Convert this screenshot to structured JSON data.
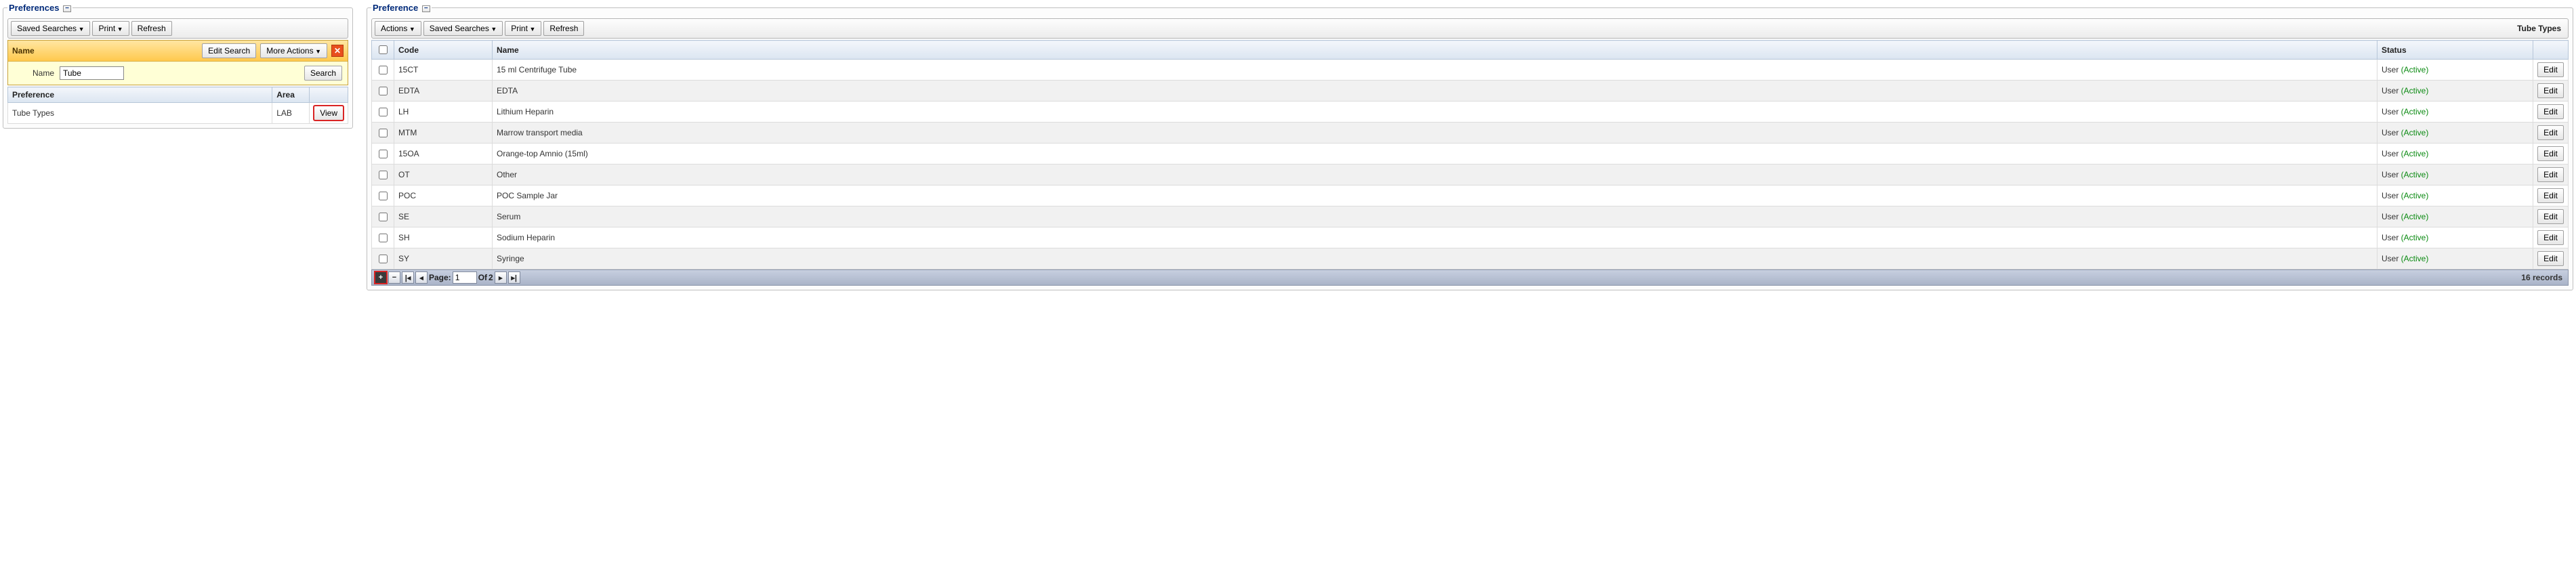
{
  "left": {
    "legend": "Preferences",
    "toolbar": {
      "saved": "Saved Searches",
      "print": "Print",
      "refresh": "Refresh"
    },
    "filter": {
      "headTitle": "Name",
      "editSearch": "Edit Search",
      "moreActions": "More Actions",
      "fieldLabel": "Name",
      "fieldValue": "Tube",
      "searchBtn": "Search"
    },
    "grid": {
      "cols": {
        "pref": "Preference",
        "area": "Area",
        "action": ""
      },
      "rows": [
        {
          "pref": "Tube Types",
          "area": "LAB",
          "action": "View"
        }
      ]
    }
  },
  "right": {
    "legend": "Preference",
    "toolbar": {
      "actions": "Actions",
      "saved": "Saved Searches",
      "print": "Print",
      "refresh": "Refresh",
      "title": "Tube Types"
    },
    "grid": {
      "cols": {
        "code": "Code",
        "name": "Name",
        "status": "Status",
        "action": ""
      },
      "statusPrefix": "User",
      "statusActive": "(Active)",
      "editLabel": "Edit",
      "rows": [
        {
          "code": "15CT",
          "name": "15 ml Centrifuge Tube"
        },
        {
          "code": "EDTA",
          "name": "EDTA"
        },
        {
          "code": "LH",
          "name": "Lithium Heparin"
        },
        {
          "code": "MTM",
          "name": "Marrow transport media"
        },
        {
          "code": "15OA",
          "name": "Orange-top Amnio (15ml)"
        },
        {
          "code": "OT",
          "name": "Other"
        },
        {
          "code": "POC",
          "name": "POC Sample Jar"
        },
        {
          "code": "SE",
          "name": "Serum"
        },
        {
          "code": "SH",
          "name": "Sodium Heparin"
        },
        {
          "code": "SY",
          "name": "Syringe"
        }
      ]
    },
    "pager": {
      "pageLabel": "Page:",
      "page": "1",
      "ofLabel": "Of",
      "total": "2",
      "records": "16 records"
    }
  },
  "colors": {
    "legend": "#002a7a",
    "active": "#0a8a11",
    "highlight": "#d92424",
    "filterHeadFrom": "#ffe6a2",
    "filterHeadTo": "#ffc94d",
    "filterBody": "#ffffd6"
  }
}
